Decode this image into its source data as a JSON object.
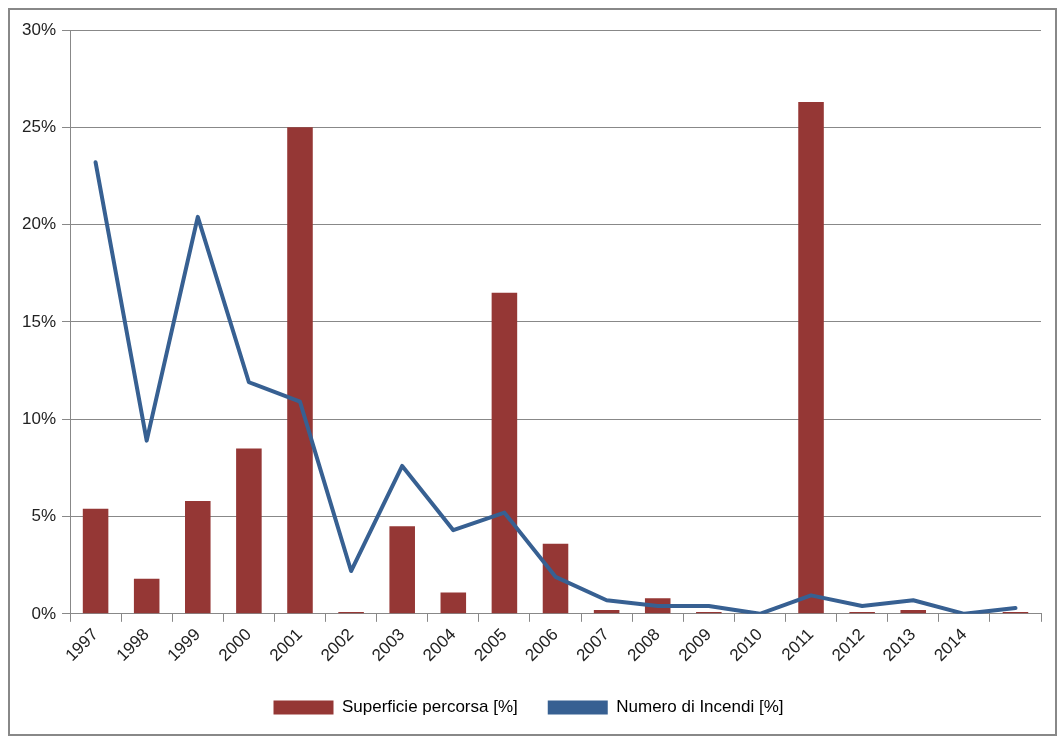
{
  "chart_data": {
    "type": "bar",
    "categories": [
      "1997",
      "1998",
      "1999",
      "2000",
      "2001",
      "2002",
      "2003",
      "2004",
      "2005",
      "2006",
      "2007",
      "2008",
      "2009",
      "2010",
      "2011",
      "2012",
      "2013",
      "2014",
      null
    ],
    "series": [
      {
        "name": "Superficie percorsa [%]",
        "color": "#953735",
        "values": [
          5.4,
          1.8,
          5.8,
          8.5,
          25,
          0.1,
          4.5,
          1.1,
          16.5,
          3.6,
          0.2,
          0.8,
          0.1,
          0,
          26.3,
          0.1,
          0.2,
          0,
          0.1
        ]
      },
      {
        "name": "Numero di Incendi [%]",
        "type": "line",
        "color": "#376092",
        "values": [
          23.2,
          8.9,
          20.4,
          11.9,
          10.9,
          2.2,
          7.6,
          4.3,
          5.2,
          1.9,
          0.7,
          0.4,
          0.4,
          0,
          0.95,
          0.4,
          0.7,
          0,
          0.3
        ]
      }
    ],
    "ylim": [
      0,
      30
    ],
    "yticks": [
      {
        "value": 0,
        "label": "0%"
      },
      {
        "value": 5,
        "label": "5%"
      },
      {
        "value": 10,
        "label": "10%"
      },
      {
        "value": 15,
        "label": "15%"
      },
      {
        "value": 20,
        "label": "20%"
      },
      {
        "value": 25,
        "label": "25%"
      },
      {
        "value": 30,
        "label": "30%"
      }
    ],
    "grid": "y",
    "legend": "bottom",
    "marker": "none",
    "line_style": "solid"
  }
}
